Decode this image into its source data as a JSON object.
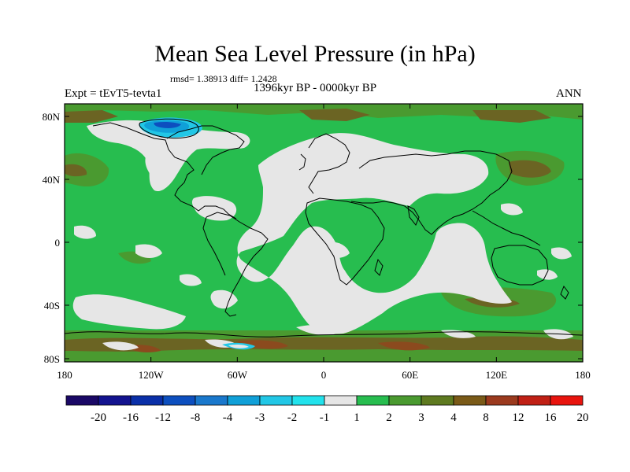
{
  "figure": {
    "title": "Mean Sea Level Pressure (in hPa)",
    "stats": "rmsd= 1.38913 diff= 1.2428",
    "experiment": "Expt = tEvT5-tevta1",
    "period": "1396kyr BP - 0000kyr BP",
    "season": "ANN"
  },
  "axes": {
    "x_ticks": [
      "180",
      "120W",
      "60W",
      "0",
      "60E",
      "120E",
      "180"
    ],
    "y_ticks": [
      "80N",
      "40N",
      "0",
      "40S",
      "80S"
    ]
  },
  "colorbar": {
    "labels": [
      "-20",
      "-16",
      "-12",
      "-8",
      "-4",
      "-3",
      "-2",
      "-1",
      "1",
      "2",
      "3",
      "4",
      "8",
      "12",
      "16",
      "20"
    ],
    "colors": [
      "#1a0866",
      "#13138f",
      "#0a2fa8",
      "#0d4fbf",
      "#1a78cc",
      "#10a0d8",
      "#22c7e6",
      "#22e2ec",
      "#e6e6e6",
      "#27bd4f",
      "#4a9a30",
      "#5e7a20",
      "#7a5a18",
      "#9b3a1e",
      "#c02015",
      "#e8140e"
    ]
  },
  "map_colors": {
    "background": "#27bd4f",
    "near_zero": "#e6e6e6",
    "positive_moderate": "#4a9a30",
    "positive_strong": "#6b6423",
    "positive_high": "#8b4a1e",
    "negative": "#22c7e6",
    "negative_strong": "#0d4fbf",
    "coastline": "#000000"
  }
}
